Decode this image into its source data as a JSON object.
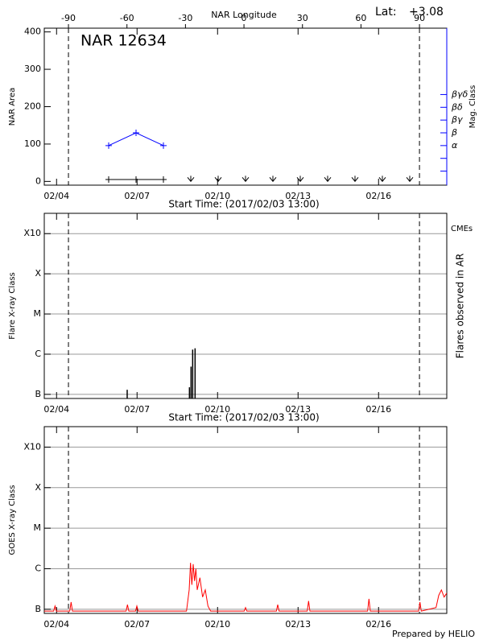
{
  "chart_data": [
    {
      "type": "line",
      "title": "NAR 12634",
      "lat_label": "Lat:",
      "lat_value": "+3.08",
      "xlabel": "Start Time: (2017/02/03 13:00)",
      "x2label": "NAR Longitude",
      "ylabel": "NAR Area",
      "y2label": "Mag. Class",
      "y2color": "#0000ff",
      "xlim": [
        0,
        15
      ],
      "xticks": [
        {
          "value": 0.458,
          "label": "02/04"
        },
        {
          "value": 3.458,
          "label": "02/07"
        },
        {
          "value": 6.458,
          "label": "02/10"
        },
        {
          "value": 9.458,
          "label": "02/13"
        },
        {
          "value": 12.458,
          "label": "02/16"
        }
      ],
      "x2lim": [
        -102.4,
        104.0
      ],
      "x2ticks": [
        -90,
        -60,
        -30,
        0,
        30,
        60,
        90
      ],
      "ylim": [
        -10,
        410
      ],
      "yticks": [
        0,
        100,
        200,
        300,
        400
      ],
      "y2lim": [
        -2.1,
        10.2
      ],
      "y2ticks": [
        {
          "value": -1,
          "label": null
        },
        {
          "value": 0,
          "label": null
        },
        {
          "value": 1,
          "label": "α"
        },
        {
          "value": 2,
          "label": "β"
        },
        {
          "value": 3,
          "label": "βγ"
        },
        {
          "value": 4,
          "label": "βδ"
        },
        {
          "value": 5,
          "label": "βγδ"
        }
      ],
      "grid": false,
      "series": [
        {
          "color": "#000000",
          "marker": "plus",
          "x": [
            2.4,
            3.42,
            4.44
          ],
          "values": [
            5,
            5,
            5
          ]
        },
        {
          "color": "#000000",
          "marker": "arrow",
          "x": [
            5.46,
            6.48,
            7.5,
            8.52,
            9.54,
            10.56,
            11.58,
            12.6,
            13.62
          ],
          "values": [
            0,
            0,
            0,
            0,
            0,
            0,
            0,
            0,
            0
          ]
        },
        {
          "color": "#0000ff",
          "marker": "plus",
          "axis": "y2",
          "x": [
            2.4,
            3.42,
            4.44
          ],
          "values": [
            1,
            2,
            1
          ]
        }
      ]
    },
    {
      "type": "bar",
      "xlabel": "Start Time: (2017/02/03 13:00)",
      "ylabel": "Flare X-ray Class",
      "y2label": "Flares observed in AR",
      "cme_label": "CMEs",
      "cme_color": "#ff0000",
      "xlim": [
        0,
        15
      ],
      "xticks": [
        {
          "value": 0.458,
          "label": "02/04"
        },
        {
          "value": 3.458,
          "label": "02/07"
        },
        {
          "value": 6.458,
          "label": "02/10"
        },
        {
          "value": 9.458,
          "label": "02/13"
        },
        {
          "value": 12.458,
          "label": "02/16"
        }
      ],
      "log": true,
      "ylim": [
        7.9e-08,
        0.0032
      ],
      "yticks": [
        {
          "value": 1e-07,
          "label": "B"
        },
        {
          "value": 1e-06,
          "label": "C"
        },
        {
          "value": 1e-05,
          "label": "M"
        },
        {
          "value": 0.0001,
          "label": "X"
        },
        {
          "value": 0.001,
          "label": "X10"
        }
      ],
      "grid": true,
      "series": [
        {
          "color": "#000000",
          "x": [
            3.09,
            5.41,
            5.47,
            5.53,
            5.62
          ],
          "values": [
            1.3e-07,
            1.5e-07,
            4.9e-07,
            1.3e-06,
            1.4e-06
          ]
        }
      ]
    },
    {
      "type": "line",
      "ylabel": "GOES X-ray Class",
      "xlim": [
        0,
        15
      ],
      "xticks": [
        {
          "value": 0.458,
          "label": "02/04"
        },
        {
          "value": 3.458,
          "label": "02/07"
        },
        {
          "value": 6.458,
          "label": "02/10"
        },
        {
          "value": 9.458,
          "label": "02/13"
        },
        {
          "value": 12.458,
          "label": "02/16"
        }
      ],
      "log": true,
      "ylim": [
        7.9e-08,
        0.0032
      ],
      "yticks": [
        {
          "value": 1e-07,
          "label": "B"
        },
        {
          "value": 1e-06,
          "label": "C"
        },
        {
          "value": 1e-05,
          "label": "M"
        },
        {
          "value": 0.0001,
          "label": "X"
        },
        {
          "value": 0.001,
          "label": "X10"
        }
      ],
      "grid": true,
      "series": [
        {
          "color": "#ff0000",
          "x": [
            0.0,
            0.35,
            0.4,
            0.45,
            0.95,
            1.0,
            1.05,
            3.05,
            3.1,
            3.15,
            3.4,
            3.45,
            3.5,
            5.3,
            5.4,
            5.45,
            5.5,
            5.55,
            5.6,
            5.65,
            5.7,
            5.8,
            5.9,
            6.0,
            6.1,
            6.2,
            7.45,
            7.5,
            7.55,
            8.65,
            8.7,
            8.75,
            9.8,
            9.85,
            9.9,
            12.05,
            12.1,
            12.15,
            13.95,
            14.0,
            14.05,
            14.6,
            14.7,
            14.8,
            14.9,
            15.0
          ],
          "values": [
            9e-08,
            9e-08,
            1.2e-07,
            9e-08,
            9e-08,
            1.5e-07,
            9e-08,
            9e-08,
            1.3e-07,
            9e-08,
            9e-08,
            1.2e-07,
            9e-08,
            9e-08,
            3e-07,
            1.4e-06,
            4e-07,
            1.3e-06,
            5e-07,
            1e-06,
            3e-07,
            6e-07,
            2e-07,
            3e-07,
            1.2e-07,
            9e-08,
            9e-08,
            1.1e-07,
            9e-08,
            9e-08,
            1.3e-07,
            9e-08,
            9e-08,
            1.6e-07,
            9e-08,
            9e-08,
            1.8e-07,
            9e-08,
            9e-08,
            1.5e-07,
            9e-08,
            1.1e-07,
            2.2e-07,
            3e-07,
            2e-07,
            2.5e-07
          ]
        }
      ]
    }
  ],
  "footer": "Prepared by HELIO"
}
